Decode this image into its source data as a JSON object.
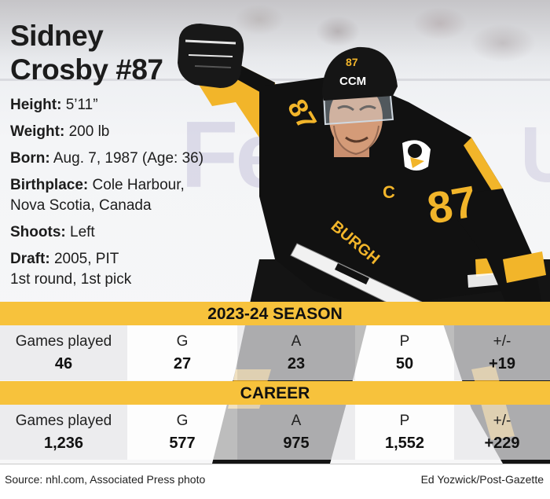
{
  "player": {
    "name_line1": "Sidney",
    "name_line2": "Crosby #87",
    "jersey_number": "87",
    "helmet_number": "87",
    "helmet_brand": "CCM",
    "captain_letter": "C"
  },
  "bio": {
    "height_label": "Height:",
    "height_value": " 5’11”",
    "weight_label": "Weight:",
    "weight_value": " 200 lb",
    "born_label": "Born:",
    "born_value": " Aug. 7, 1987 (Age: 36)",
    "birthplace_label": "Birthplace:",
    "birthplace_value": " Cole Harbour, Nova Scotia, Canada",
    "shoots_label": "Shoots:",
    "shoots_value": " Left",
    "draft_label": "Draft:",
    "draft_value_line1": " 2005, PIT",
    "draft_value_line2": "1st round, 1st pick"
  },
  "season": {
    "title": "2023-24 SEASON",
    "labels": [
      "Games played",
      "G",
      "A",
      "P",
      "+/-"
    ],
    "values": [
      "46",
      "27",
      "23",
      "50",
      "+19"
    ]
  },
  "career": {
    "title": "CAREER",
    "labels": [
      "Games played",
      "G",
      "A",
      "P",
      "+/-"
    ],
    "values": [
      "1,236",
      "577",
      "975",
      "1,552",
      "+229"
    ]
  },
  "footer": {
    "source": "Source: nhl.com, Associated Press photo",
    "credit": "Ed Yozwick/Post-Gazette"
  },
  "colors": {
    "band_gold": "#f7c23c",
    "jersey_black": "#111111",
    "jersey_gold": "#f2b52a",
    "text_dark": "#1c1c1c"
  }
}
